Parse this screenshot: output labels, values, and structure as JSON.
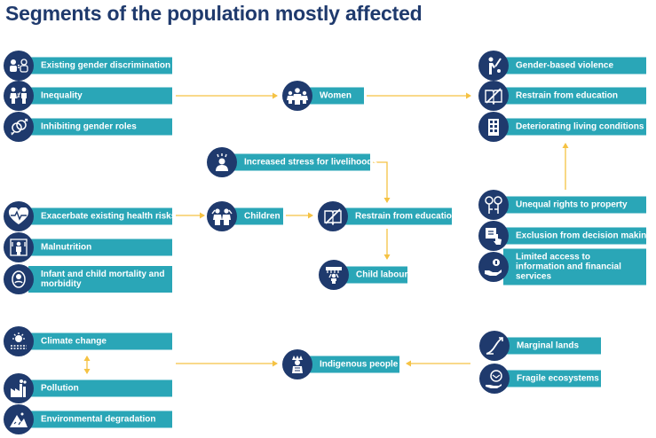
{
  "title": "Segments of the population mostly affected",
  "colors": {
    "navy": "#1f3a6d",
    "teal": "#2aa6b7",
    "arrow": "#f5c243"
  },
  "women_group": {
    "causes": [
      "Existing gender discrimination",
      "Inequality",
      "Inhibiting gender roles"
    ],
    "hub": "Women",
    "effects": [
      "Gender-based violence",
      "Restrain from education",
      "Deteriorating living conditions"
    ]
  },
  "children_group": {
    "causes": [
      "Exacerbate existing health risks",
      "Malnutrition",
      "Infant and child mortality and morbidity"
    ],
    "stress": "Increased stress for livelihoods",
    "hub": "Children",
    "education": "Restrain from education",
    "labour": "Child labour"
  },
  "property_group": [
    "Unequal rights to property",
    "Exclusion from decision making",
    "Limited access to information and financial services"
  ],
  "indigenous_group": {
    "causes": [
      "Climate change",
      "Pollution",
      "Environmental degradation"
    ],
    "hub": "Indigenous people",
    "land": [
      "Marginal lands",
      "Fragile ecosystems"
    ]
  },
  "icons": [
    "people-equal-icon",
    "gender-inequality-icon",
    "gender-roles-icon",
    "women-group-icon",
    "violence-icon",
    "education-book-icon",
    "building-icon",
    "stress-person-icon",
    "heartbeat-icon",
    "children-icon",
    "malnutrition-icon",
    "infant-icon",
    "child-labour-icon",
    "property-rights-icon",
    "decision-making-icon",
    "financial-access-icon",
    "climate-sun-icon",
    "pollution-factory-icon",
    "degradation-rocks-icon",
    "indigenous-person-icon",
    "marginal-land-icon",
    "ecosystem-icon"
  ]
}
